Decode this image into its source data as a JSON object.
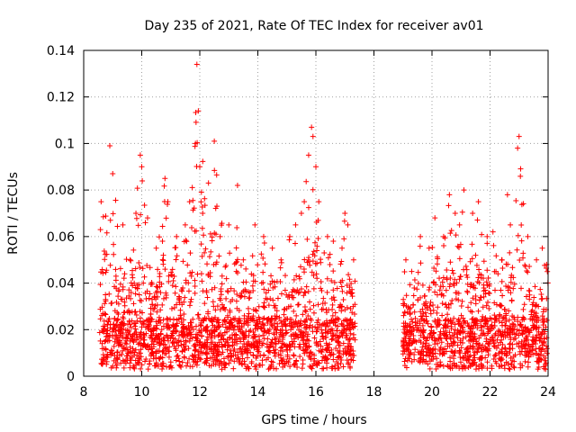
{
  "chart_data": {
    "type": "scatter",
    "title": "Day 235 of 2021, Rate Of TEC Index for receiver av01",
    "xlabel": "GPS time / hours",
    "ylabel": "ROTI / TECUs",
    "xlim": [
      8,
      24
    ],
    "ylim": [
      0,
      0.14
    ],
    "xticks": [
      8,
      10,
      12,
      14,
      16,
      18,
      20,
      22,
      24
    ],
    "xtick_labels": [
      "8",
      "10",
      "12",
      "14",
      "16",
      "18",
      "20",
      "22",
      "24"
    ],
    "yticks": [
      0,
      0.02,
      0.04,
      0.06,
      0.08,
      0.1,
      0.12,
      0.14
    ],
    "ytick_labels": [
      "0",
      "0.02",
      "0.04",
      "0.06",
      "0.08",
      "0.1",
      "0.12",
      "0.14"
    ],
    "grid": true,
    "marker": "+",
    "color": "#ff0000",
    "series": [
      {
        "name": "av01",
        "segments": [
          [
            8.55,
            17.35
          ],
          [
            19.0,
            24.0
          ]
        ],
        "x": [
          8.6,
          8.75,
          8.9,
          9.0,
          9.35,
          9.6,
          9.8,
          9.95,
          10.0,
          10.2,
          10.5,
          10.8,
          10.9,
          11.2,
          11.5,
          11.65,
          11.85,
          11.9,
          11.95,
          12.0,
          12.1,
          12.3,
          12.5,
          12.7,
          13.0,
          13.3,
          13.5,
          13.9,
          14.2,
          14.5,
          14.8,
          15.1,
          15.3,
          15.5,
          15.6,
          15.75,
          15.85,
          15.9,
          16.0,
          16.1,
          16.4,
          16.6,
          16.9,
          17.0,
          17.1,
          17.3,
          19.1,
          19.3,
          19.6,
          19.9,
          20.1,
          20.4,
          20.6,
          20.8,
          20.95,
          21.1,
          21.4,
          21.6,
          21.9,
          22.1,
          22.4,
          22.6,
          22.7,
          22.95,
          23.0,
          23.3,
          23.6,
          23.8,
          23.95
        ],
        "y": [
          0.075,
          0.035,
          0.099,
          0.087,
          0.065,
          0.05,
          0.07,
          0.095,
          0.09,
          0.068,
          0.055,
          0.085,
          0.075,
          0.06,
          0.065,
          0.075,
          0.1,
          0.134,
          0.114,
          0.09,
          0.07,
          0.083,
          0.101,
          0.06,
          0.065,
          0.082,
          0.05,
          0.065,
          0.06,
          0.055,
          0.05,
          0.06,
          0.065,
          0.07,
          0.075,
          0.095,
          0.107,
          0.103,
          0.09,
          0.075,
          0.06,
          0.058,
          0.055,
          0.07,
          0.065,
          0.05,
          0.05,
          0.045,
          0.06,
          0.055,
          0.068,
          0.06,
          0.078,
          0.07,
          0.065,
          0.08,
          0.07,
          0.075,
          0.06,
          0.062,
          0.05,
          0.078,
          0.065,
          0.098,
          0.103,
          0.06,
          0.05,
          0.055,
          0.048
        ]
      }
    ]
  }
}
